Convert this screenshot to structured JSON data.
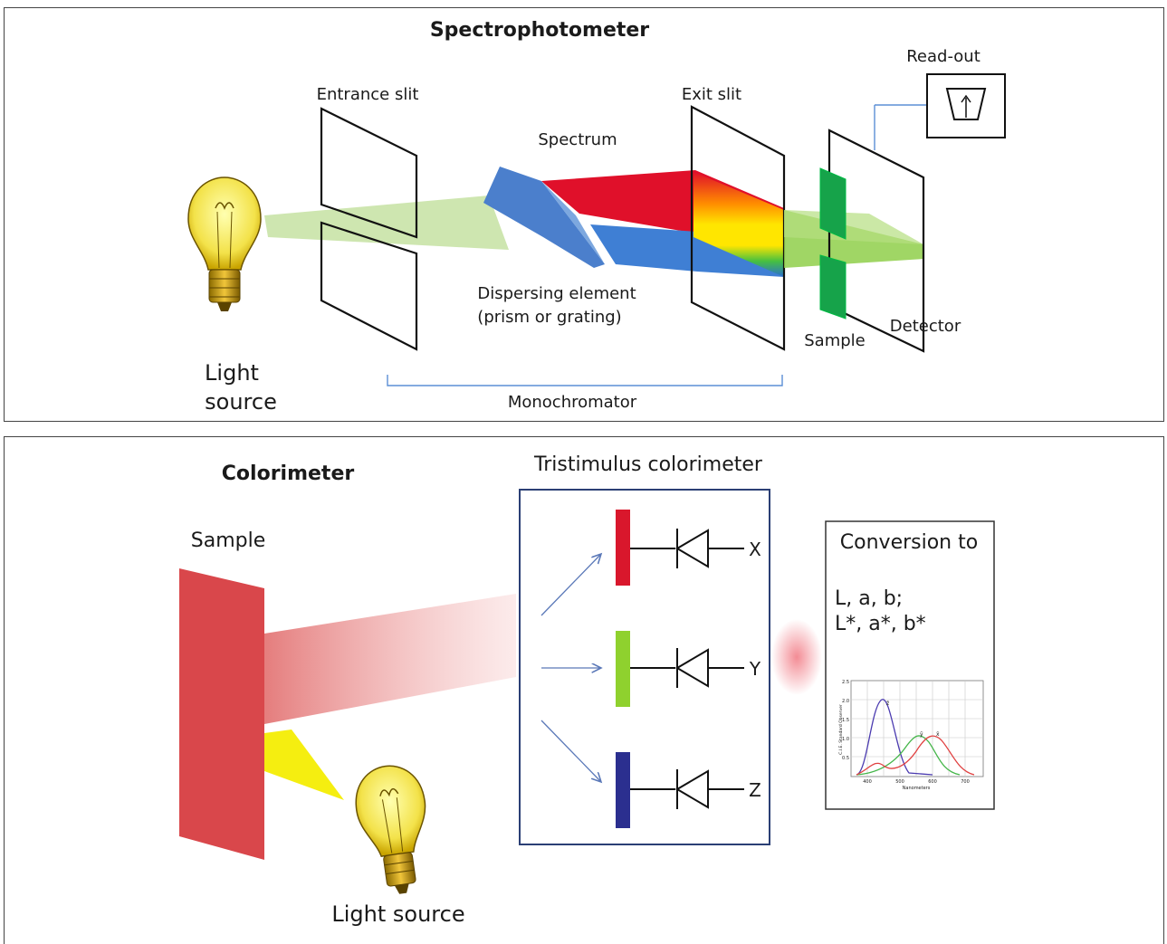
{
  "spectrophotometer": {
    "title": "Spectrophotometer",
    "labels": {
      "entrance_slit": "Entrance slit",
      "exit_slit": "Exit slit",
      "spectrum": "Spectrum",
      "read_out": "Read-out",
      "dispersing_line1": "Dispersing element",
      "dispersing_line2": "(prism or grating)",
      "detector": "Detector",
      "sample": "Sample",
      "light_line1": "Light",
      "light_line2": "source",
      "monochromator": "Monochromator"
    }
  },
  "colorimeter": {
    "title": "Colorimeter",
    "labels": {
      "sample": "Sample",
      "tristimulus": "Tristimulus colorimeter",
      "light_source": "Light source",
      "out_x": "X",
      "out_y": "Y",
      "out_z": "Z",
      "conversion_title": "Conversion to",
      "conversion_line1": "L, a, b;",
      "conversion_line2": "L*, a*, b*"
    },
    "filter_colors": {
      "x": "#d9172c",
      "y": "#8fd12e",
      "z": "#2b2f8f"
    }
  },
  "mini_chart": {
    "y_ticks": [
      "2.5",
      "2.0",
      "1.5",
      "1.0",
      "0.5"
    ],
    "x_ticks": [
      "400",
      "500",
      "600",
      "700"
    ],
    "xlabel": "Nanometers",
    "ylabel": "C.I.E. Standard Observer",
    "series_labels": [
      "z̄",
      "ȳ",
      "x̄"
    ]
  }
}
